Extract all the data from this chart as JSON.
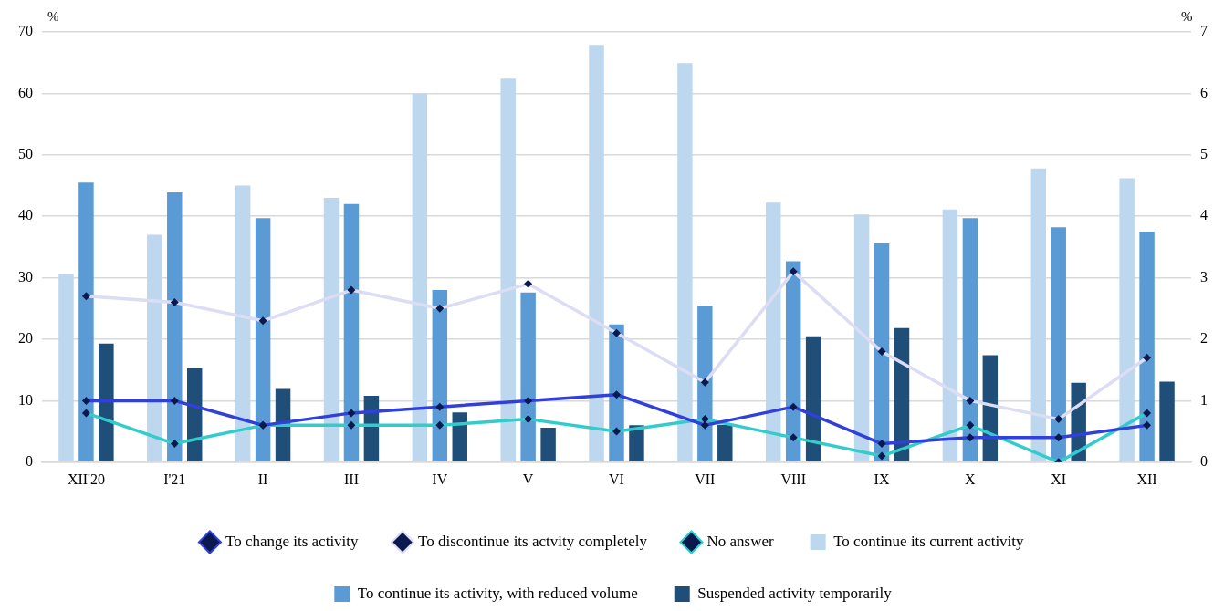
{
  "chart_data": {
    "type": "bar",
    "categories": [
      "XII'20",
      "I'21",
      "II",
      "III",
      "IV",
      "V",
      "VI",
      "VII",
      "VIII",
      "IX",
      "X",
      "XI",
      "XII"
    ],
    "ylabel": "%",
    "y2label": "%",
    "ylim": [
      0,
      70
    ],
    "yticks": [
      0,
      10,
      20,
      30,
      40,
      50,
      60,
      70
    ],
    "y2lim": [
      0,
      7
    ],
    "y2ticks": [
      0,
      1,
      2,
      3,
      4,
      5,
      6,
      7
    ],
    "grid": "y",
    "legend": "bottom",
    "marker": "diamond",
    "series": [
      {
        "name": "To continue its current activity",
        "color": "#bdd7ee",
        "values": [
          30.6,
          37,
          45,
          43,
          60,
          62.4,
          67.9,
          64.9,
          42.2,
          40.3,
          41.1,
          47.8,
          46.2
        ]
      },
      {
        "name": "To continue its activity, with reduced volume",
        "color": "#5b9bd5",
        "values": [
          45.5,
          43.9,
          39.7,
          42,
          28,
          27.6,
          22.4,
          25.5,
          32.7,
          35.6,
          39.7,
          38.2,
          37.5
        ]
      },
      {
        "name": "Suspended activity temporarily",
        "color": "#1f4e79",
        "values": [
          19.3,
          15.3,
          11.9,
          10.8,
          8.1,
          5.6,
          6,
          6.1,
          20.5,
          21.8,
          17.4,
          12.9,
          13.1
        ]
      },
      {
        "name": "To change its activity",
        "type": "line",
        "axis": "y2",
        "color": "#3040d8",
        "values": [
          1.0,
          1.0,
          0.6,
          0.8,
          0.9,
          1.0,
          1.1,
          0.6,
          0.9,
          0.3,
          0.4,
          0.4,
          0.6
        ]
      },
      {
        "name": "To discontinue its actvity completely",
        "type": "line",
        "axis": "y2",
        "color": "#dcdcf5",
        "values": [
          2.7,
          2.6,
          2.3,
          2.8,
          2.5,
          2.9,
          2.1,
          1.3,
          3.1,
          1.8,
          1.0,
          0.7,
          1.7
        ]
      },
      {
        "name": "No answer",
        "type": "line",
        "axis": "y2",
        "color": "#33cccc",
        "values": [
          0.8,
          0.3,
          0.6,
          0.6,
          0.6,
          0.7,
          0.5,
          0.7,
          0.4,
          0.1,
          0.6,
          0.0,
          0.8
        ]
      }
    ]
  }
}
